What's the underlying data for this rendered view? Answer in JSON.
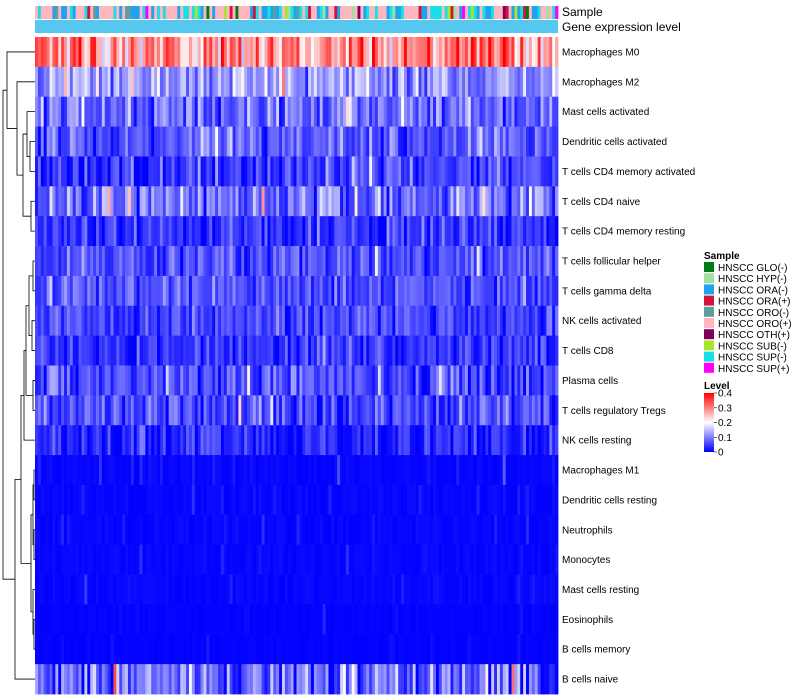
{
  "chart_data": {
    "type": "heatmap",
    "title": "",
    "n_samples": 180,
    "annotation_labels": {
      "sample": "Sample",
      "gene_expression": "Gene expression level"
    },
    "annotation_bar_color": "#56c8f0",
    "rows": [
      {
        "label": "Macrophages M0",
        "mean": 0.29,
        "spread": 0.09
      },
      {
        "label": "Macrophages M2",
        "mean": 0.12,
        "spread": 0.06
      },
      {
        "label": "Mast cells activated",
        "mean": 0.08,
        "spread": 0.06
      },
      {
        "label": "Dendritic cells activated",
        "mean": 0.07,
        "spread": 0.05
      },
      {
        "label": "T cells CD4 memory activated",
        "mean": 0.05,
        "spread": 0.05
      },
      {
        "label": "T cells CD4 naive",
        "mean": 0.09,
        "spread": 0.07
      },
      {
        "label": "T cells CD4 memory resting",
        "mean": 0.04,
        "spread": 0.04
      },
      {
        "label": "T cells follicular helper",
        "mean": 0.06,
        "spread": 0.04
      },
      {
        "label": "T cells gamma delta",
        "mean": 0.06,
        "spread": 0.04
      },
      {
        "label": "NK cells activated",
        "mean": 0.05,
        "spread": 0.04
      },
      {
        "label": "T cells CD8",
        "mean": 0.04,
        "spread": 0.04
      },
      {
        "label": "Plasma cells",
        "mean": 0.06,
        "spread": 0.05
      },
      {
        "label": "T cells regulatory  Tregs",
        "mean": 0.05,
        "spread": 0.05
      },
      {
        "label": "NK cells resting",
        "mean": 0.03,
        "spread": 0.04
      },
      {
        "label": "Macrophages M1",
        "mean": 0.01,
        "spread": 0.02
      },
      {
        "label": "Dendritic cells resting",
        "mean": 0.01,
        "spread": 0.02
      },
      {
        "label": "Neutrophils",
        "mean": 0.01,
        "spread": 0.02
      },
      {
        "label": "Monocytes",
        "mean": 0.01,
        "spread": 0.02
      },
      {
        "label": "Mast cells resting",
        "mean": 0.01,
        "spread": 0.02
      },
      {
        "label": "Eosinophils",
        "mean": 0.005,
        "spread": 0.01
      },
      {
        "label": "B cells memory",
        "mean": 0.005,
        "spread": 0.01
      },
      {
        "label": "B cells naive",
        "mean": 0.08,
        "spread": 0.08
      }
    ],
    "sample_legend": {
      "title": "Sample",
      "items": [
        {
          "label": "HNSCC GLO(-)",
          "color": "#007a12"
        },
        {
          "label": "HNSCC HYP(-)",
          "color": "#9ee0a0"
        },
        {
          "label": "HNSCC ORA(-)",
          "color": "#1ea3f0"
        },
        {
          "label": "HNSCC ORA(+)",
          "color": "#d2143c"
        },
        {
          "label": "HNSCC ORO(-)",
          "color": "#5f9ea0"
        },
        {
          "label": "HNSCC ORO(+)",
          "color": "#ffb6c1"
        },
        {
          "label": "HNSCC OTH(+)",
          "color": "#800060"
        },
        {
          "label": "HNSCC SUB(-)",
          "color": "#a8e62e"
        },
        {
          "label": "HNSCC SUP(-)",
          "color": "#18e0e8"
        },
        {
          "label": "HNSCC SUP(+)",
          "color": "#ff00ff"
        }
      ],
      "weights": [
        0.02,
        0.06,
        0.18,
        0.06,
        0.06,
        0.34,
        0.02,
        0.04,
        0.2,
        0.02
      ]
    },
    "level_legend": {
      "title": "Level",
      "range": [
        0,
        0.4
      ],
      "ticks": [
        "0.4",
        "0.3",
        "0.2",
        "0.1",
        "0"
      ],
      "tick_values": [
        0.4,
        0.3,
        0.2,
        0.1,
        0
      ],
      "colors": [
        "#0000ff",
        "#ffffff",
        "#ff0000"
      ]
    }
  }
}
